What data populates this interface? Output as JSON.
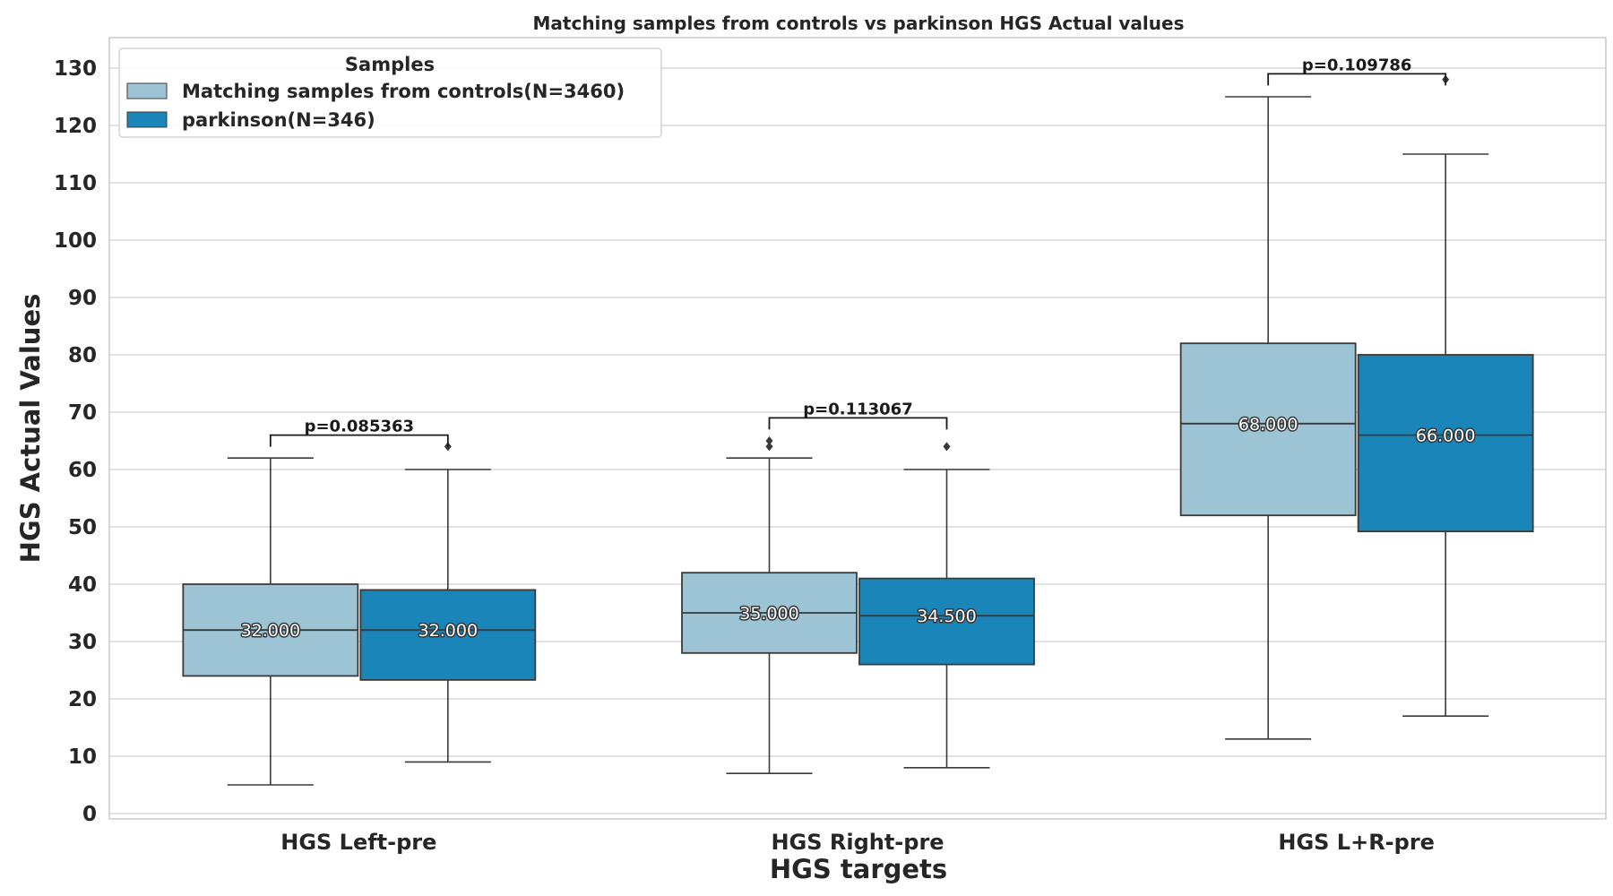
{
  "colors": {
    "controls": "#9dc4d4",
    "parkinson": "#1a85b8",
    "edge": "#3a3a3a",
    "grid": "#d0d0d0",
    "frame": "#cccccc"
  },
  "chart_data": {
    "type": "box",
    "title": "Matching samples from controls vs parkinson HGS Actual values",
    "xlabel": "HGS targets",
    "ylabel": "HGS Actual Values",
    "ylim": [
      -1,
      135
    ],
    "yticks": [
      0,
      10,
      20,
      30,
      40,
      50,
      60,
      70,
      80,
      90,
      100,
      110,
      120,
      130
    ],
    "grid": "horizontal",
    "legend": {
      "title": "Samples",
      "placement": "top-left",
      "entries": [
        "Matching samples from controls(N=3460)",
        "parkinson(N=346)"
      ]
    },
    "categories": [
      "HGS Left-pre",
      "HGS Right-pre",
      "HGS L+R-pre"
    ],
    "series": [
      {
        "name": "Matching samples from controls(N=3460)",
        "color_key": "controls",
        "boxes": [
          {
            "whisker_low": 5,
            "q1": 24,
            "median": 32,
            "q3": 40,
            "whisker_high": 62,
            "outliers": [],
            "median_label": "32.000"
          },
          {
            "whisker_low": 7,
            "q1": 28,
            "median": 35,
            "q3": 42,
            "whisker_high": 62,
            "outliers": [
              64,
              65
            ],
            "median_label": "35.000"
          },
          {
            "whisker_low": 13,
            "q1": 52,
            "median": 68,
            "q3": 82,
            "whisker_high": 125,
            "outliers": [],
            "median_label": "68.000"
          }
        ]
      },
      {
        "name": "parkinson(N=346)",
        "color_key": "parkinson",
        "boxes": [
          {
            "whisker_low": 9,
            "q1": 23.3,
            "median": 32,
            "q3": 39,
            "whisker_high": 60,
            "outliers": [
              64
            ],
            "median_label": "32.000"
          },
          {
            "whisker_low": 8,
            "q1": 26,
            "median": 34.5,
            "q3": 41,
            "whisker_high": 60,
            "outliers": [
              64
            ],
            "median_label": "34.500"
          },
          {
            "whisker_low": 17,
            "q1": 49.2,
            "median": 66,
            "q3": 80,
            "whisker_high": 115,
            "outliers": [
              128
            ],
            "median_label": "66.000"
          }
        ]
      }
    ],
    "annotations": [
      {
        "category_index": 0,
        "text": "p=0.085363",
        "bracket_y": 66
      },
      {
        "category_index": 1,
        "text": "p=0.113067",
        "bracket_y": 69
      },
      {
        "category_index": 2,
        "text": "p=0.109786",
        "bracket_y": 129
      }
    ]
  }
}
